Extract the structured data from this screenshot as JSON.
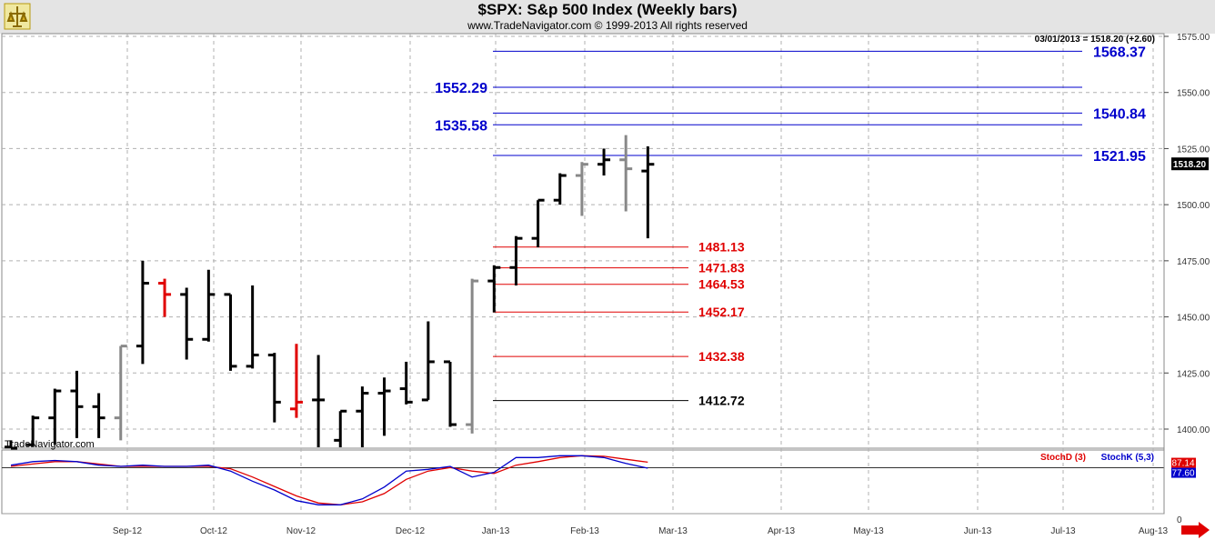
{
  "header": {
    "title": "$SPX:  S&p 500 Index  (Weekly bars)",
    "subtitle": "www.TradeNavigator.com © 1999-2013 All rights reserved"
  },
  "readout": "03/01/2013 = 1518.20 (+2.60)",
  "price_label": "1518.20",
  "watermark": "TradeNavigator.com",
  "colors": {
    "up": "#000000",
    "down": "#888888",
    "red": "#e00000",
    "blue": "#0000cc",
    "grid": "#b0b0b0"
  },
  "chart_data": {
    "type": "ohlc",
    "months": [
      "Sep-12",
      "Oct-12",
      "Nov-12",
      "Dec-12",
      "Jan-13",
      "Feb-13",
      "Mar-13",
      "Apr-13",
      "May-13",
      "Jun-13",
      "Jul-13",
      "Aug-13"
    ],
    "price_ticks": [
      1400,
      1425,
      1450,
      1475,
      1500,
      1525,
      1550,
      1575
    ],
    "price_tick_labels": [
      "1400.00",
      "1425.00",
      "1450.00",
      "1475.00",
      "1500.00",
      "1525.00",
      "1550.00",
      "1575.00"
    ],
    "ylim": [
      1388,
      1580
    ],
    "bars": [
      {
        "h": 1395,
        "l": 1388,
        "o": 1392,
        "c": 1390,
        "col": "k"
      },
      {
        "h": 1406,
        "l": 1392,
        "o": 1393,
        "c": 1405,
        "col": "k"
      },
      {
        "h": 1418,
        "l": 1393,
        "o": 1405,
        "c": 1417,
        "col": "k"
      },
      {
        "h": 1426,
        "l": 1396,
        "o": 1417,
        "c": 1410,
        "col": "k"
      },
      {
        "h": 1416,
        "l": 1396,
        "o": 1410,
        "c": 1405,
        "col": "k"
      },
      {
        "h": 1437,
        "l": 1395,
        "o": 1405,
        "c": 1437,
        "col": "g"
      },
      {
        "h": 1475,
        "l": 1429,
        "o": 1437,
        "c": 1465,
        "col": "k"
      },
      {
        "h": 1467,
        "l": 1450,
        "o": 1465,
        "c": 1460,
        "col": "r"
      },
      {
        "h": 1463,
        "l": 1431,
        "o": 1460,
        "c": 1440,
        "col": "k"
      },
      {
        "h": 1471,
        "l": 1439,
        "o": 1440,
        "c": 1460,
        "col": "k"
      },
      {
        "h": 1460,
        "l": 1426,
        "o": 1460,
        "c": 1428,
        "col": "k"
      },
      {
        "h": 1464,
        "l": 1427,
        "o": 1428,
        "c": 1433,
        "col": "k"
      },
      {
        "h": 1434,
        "l": 1403,
        "o": 1433,
        "c": 1412,
        "col": "k"
      },
      {
        "h": 1438,
        "l": 1405,
        "o": 1409,
        "c": 1412,
        "col": "r"
      },
      {
        "h": 1433,
        "l": 1390,
        "o": 1413,
        "c": 1413,
        "col": "k"
      },
      {
        "h": 1408,
        "l": 1390,
        "o": 1395,
        "c": 1408,
        "col": "k"
      },
      {
        "h": 1419,
        "l": 1390,
        "o": 1408,
        "c": 1416,
        "col": "k"
      },
      {
        "h": 1423,
        "l": 1397,
        "o": 1416,
        "c": 1417,
        "col": "k"
      },
      {
        "h": 1430,
        "l": 1411,
        "o": 1418,
        "c": 1412,
        "col": "k"
      },
      {
        "h": 1448,
        "l": 1413,
        "o": 1413,
        "c": 1430,
        "col": "k"
      },
      {
        "h": 1430,
        "l": 1401,
        "o": 1430,
        "c": 1402,
        "col": "k"
      },
      {
        "h": 1467,
        "l": 1398,
        "o": 1402,
        "c": 1466,
        "col": "g"
      },
      {
        "h": 1473,
        "l": 1452,
        "o": 1466,
        "c": 1472,
        "col": "k"
      },
      {
        "h": 1486,
        "l": 1464,
        "o": 1472,
        "c": 1485,
        "col": "k"
      },
      {
        "h": 1502,
        "l": 1481,
        "o": 1485,
        "c": 1502,
        "col": "k"
      },
      {
        "h": 1514,
        "l": 1500,
        "o": 1502,
        "c": 1513,
        "col": "k"
      },
      {
        "h": 1519,
        "l": 1495,
        "o": 1513,
        "c": 1518,
        "col": "g"
      },
      {
        "h": 1525,
        "l": 1513,
        "o": 1518,
        "c": 1520,
        "col": "k"
      },
      {
        "h": 1531,
        "l": 1497,
        "o": 1520,
        "c": 1516,
        "col": "g"
      },
      {
        "h": 1526,
        "l": 1485,
        "o": 1515,
        "c": 1518,
        "col": "k"
      }
    ],
    "levels": [
      {
        "value": 1568.37,
        "label": "1568.37",
        "color": "blue",
        "x0": 542,
        "x1": 1190,
        "lx": 1202,
        "side": "right"
      },
      {
        "value": 1552.29,
        "label": "1552.29",
        "color": "blue",
        "x0": 542,
        "x1": 1190,
        "lx": 536,
        "side": "left"
      },
      {
        "value": 1540.84,
        "label": "1540.84",
        "color": "blue",
        "x0": 542,
        "x1": 1190,
        "lx": 1202,
        "side": "right"
      },
      {
        "value": 1535.58,
        "label": "1535.58",
        "color": "blue",
        "x0": 542,
        "x1": 1190,
        "lx": 536,
        "side": "left"
      },
      {
        "value": 1521.95,
        "label": "1521.95",
        "color": "blue",
        "x0": 542,
        "x1": 1190,
        "lx": 1202,
        "side": "right"
      },
      {
        "value": 1481.13,
        "label": "1481.13",
        "color": "red",
        "x0": 542,
        "x1": 757,
        "lx": 768,
        "side": "right"
      },
      {
        "value": 1471.83,
        "label": "1471.83",
        "color": "red",
        "x0": 542,
        "x1": 757,
        "lx": 768,
        "side": "right"
      },
      {
        "value": 1464.53,
        "label": "1464.53",
        "color": "red",
        "x0": 542,
        "x1": 757,
        "lx": 768,
        "side": "right"
      },
      {
        "value": 1452.17,
        "label": "1452.17",
        "color": "red",
        "x0": 542,
        "x1": 757,
        "lx": 768,
        "side": "right"
      },
      {
        "value": 1432.38,
        "label": "1432.38",
        "color": "red",
        "x0": 542,
        "x1": 757,
        "lx": 768,
        "side": "right"
      },
      {
        "value": 1412.72,
        "label": "1412.72",
        "color": "black",
        "x0": 542,
        "x1": 757,
        "lx": 768,
        "side": "right"
      }
    ],
    "stochastic": {
      "labels": {
        "d": "StochD (3)",
        "k": "StochK (5,3)"
      },
      "values": {
        "d": "87.14",
        "k": "77.60"
      },
      "zero_label": "0",
      "ylim": [
        0,
        100
      ],
      "reference": 77.6,
      "k": [
        82,
        88,
        90,
        88,
        82,
        80,
        82,
        80,
        80,
        82,
        72,
        55,
        40,
        22,
        15,
        15,
        25,
        45,
        72,
        75,
        80,
        62,
        70,
        95,
        95,
        98,
        98,
        95,
        85,
        77
      ],
      "d": [
        80,
        84,
        88,
        88,
        84,
        80,
        80,
        80,
        80,
        80,
        76,
        62,
        46,
        30,
        18,
        15,
        20,
        34,
        58,
        72,
        78,
        72,
        68,
        82,
        88,
        95,
        98,
        97,
        92,
        87
      ]
    }
  }
}
